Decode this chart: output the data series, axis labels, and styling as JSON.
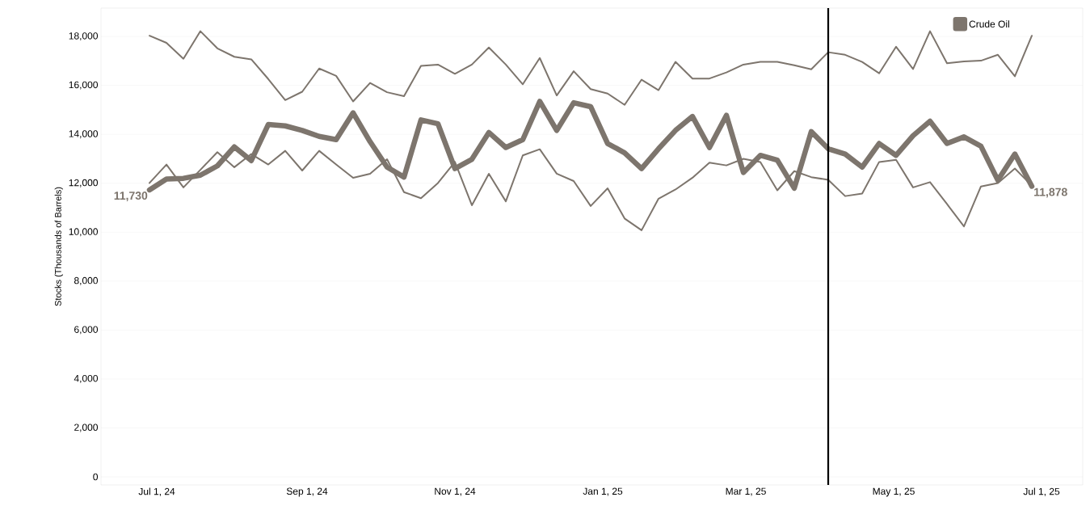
{
  "chart_data": {
    "type": "line",
    "ylabel": "Stocks (Thousands of Barrels)",
    "x": [
      "2024-06-28",
      "2024-07-05",
      "2024-07-12",
      "2024-07-19",
      "2024-07-26",
      "2024-08-02",
      "2024-08-09",
      "2024-08-16",
      "2024-08-23",
      "2024-08-30",
      "2024-09-06",
      "2024-09-13",
      "2024-09-20",
      "2024-09-27",
      "2024-10-04",
      "2024-10-11",
      "2024-10-18",
      "2024-10-25",
      "2024-11-01",
      "2024-11-08",
      "2024-11-15",
      "2024-11-22",
      "2024-11-29",
      "2024-12-06",
      "2024-12-13",
      "2024-12-20",
      "2024-12-27",
      "2025-01-03",
      "2025-01-10",
      "2025-01-17",
      "2025-01-24",
      "2025-01-31",
      "2025-02-07",
      "2025-02-14",
      "2025-02-21",
      "2025-02-28",
      "2025-03-07",
      "2025-03-14",
      "2025-03-21",
      "2025-03-28",
      "2025-04-04",
      "2025-04-11",
      "2025-04-18",
      "2025-04-25",
      "2025-05-02",
      "2025-05-09",
      "2025-05-16",
      "2025-05-23",
      "2025-05-30",
      "2025-06-06",
      "2025-06-13",
      "2025-06-20",
      "2025-06-27"
    ],
    "series": [
      {
        "color": "#7d756d",
        "values": [
          18030,
          17740,
          17090,
          18215,
          17515,
          17170,
          17065,
          16260,
          15400,
          15740,
          16690,
          16390,
          15345,
          16100,
          15720,
          15560,
          16800,
          16850,
          16475,
          16850,
          17550,
          16850,
          16045,
          17120,
          15590,
          16580,
          15850,
          15665,
          15205,
          16235,
          15805,
          16960,
          16280,
          16280,
          16530,
          16850,
          16960,
          16960,
          16820,
          16660,
          17355,
          17250,
          16960,
          16495,
          17580,
          16670,
          18215,
          16905,
          16980,
          17010,
          17250,
          16370,
          18030
        ]
      },
      {
        "color": "#7d756d",
        "values": [
          12010,
          12765,
          11830,
          12550,
          13270,
          12655,
          13195,
          12765,
          13325,
          12520,
          13325,
          12765,
          12225,
          12390,
          12980,
          11635,
          11390,
          12010,
          12870,
          11100,
          12390,
          11260,
          13140,
          13390,
          12390,
          12090,
          11070,
          11795,
          10560,
          10080,
          11370,
          11745,
          12225,
          12840,
          12730,
          13000,
          12870,
          11710,
          12495,
          12250,
          12140,
          11475,
          11580,
          12870,
          12955,
          11830,
          12045,
          11150,
          10235,
          11870,
          12010,
          12600,
          11900
        ]
      },
      {
        "name": "Crude Oil",
        "color": "#7d756d",
        "values": [
          11730,
          12170,
          12200,
          12330,
          12710,
          13485,
          12925,
          14400,
          14345,
          14160,
          13915,
          13785,
          14880,
          13700,
          12660,
          12250,
          14590,
          14430,
          12600,
          12980,
          14075,
          13460,
          13785,
          15345,
          14160,
          15290,
          15130,
          13625,
          13245,
          12600,
          13410,
          14160,
          14730,
          13460,
          14775,
          12440,
          13140,
          12945,
          11795,
          14110,
          13410,
          13195,
          12660,
          13625,
          13140,
          13945,
          14535,
          13625,
          13895,
          13515,
          12120,
          13195,
          11878
        ],
        "value_labels": [
          "11,730",
          null,
          null,
          null,
          null,
          null,
          null,
          null,
          null,
          null,
          null,
          null,
          null,
          null,
          null,
          null,
          null,
          null,
          null,
          null,
          null,
          null,
          null,
          null,
          null,
          null,
          null,
          null,
          null,
          null,
          null,
          null,
          null,
          null,
          null,
          null,
          null,
          null,
          null,
          null,
          null,
          null,
          null,
          null,
          null,
          null,
          null,
          null,
          null,
          null,
          null,
          null,
          "11,878"
        ]
      }
    ],
    "ylim": [
      -330,
      19160
    ],
    "yticks": [
      0,
      {
        "value": 2000,
        "label": "2,000"
      },
      {
        "value": 4000,
        "label": "4,000"
      },
      {
        "value": 6000,
        "label": "6,000"
      },
      {
        "value": 8000,
        "label": "8,000"
      },
      {
        "value": 10000,
        "label": "10,000"
      },
      {
        "value": 12000,
        "label": "12,000"
      },
      {
        "value": 14000,
        "label": "14,000"
      },
      {
        "value": 16000,
        "label": "16,000"
      },
      {
        "value": 18000,
        "label": "18,000"
      }
    ],
    "xlim": [
      "2024-06-08",
      "2025-07-18"
    ],
    "xticks": [
      {
        "value": "2024-07-01",
        "label": "Jul 1, 24"
      },
      {
        "value": "2024-09-01",
        "label": "Sep 1, 24"
      },
      {
        "value": "2024-11-01",
        "label": "Nov 1, 24"
      },
      {
        "value": "2025-01-01",
        "label": "Jan 1, 25"
      },
      {
        "value": "2025-03-01",
        "label": "Mar 1, 25"
      },
      {
        "value": "2025-05-01",
        "label": "May 1, 25"
      },
      {
        "value": "2025-07-01",
        "label": "Jul 1, 25"
      }
    ],
    "ref_lines": [
      {
        "axis": "x",
        "value": "2025-04-04",
        "color": "#000000"
      }
    ],
    "grid": "y",
    "legend": "top right",
    "marker": "none",
    "line_style": "solid"
  }
}
